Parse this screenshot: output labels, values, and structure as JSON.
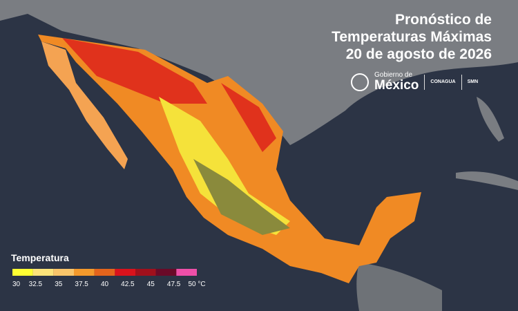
{
  "header": {
    "title": [
      "Pronóstico de",
      "Temperaturas Máximas",
      "20 de agosto de 2026"
    ],
    "logos": [
      "Gobierno de",
      "México",
      "CONAGUA",
      "SMN"
    ]
  },
  "legend": {
    "title": "Temperatura",
    "ticks": [
      30,
      32.5,
      35,
      37.5,
      40,
      42.5,
      45,
      47.5,
      {
        "value": 50,
        "label": "50 °C"
      }
    ],
    "colors": [
      "#ffff33",
      "#fde37a",
      "#f9c56a",
      "#f49a2c",
      "#e4641c",
      "#d9121c",
      "#a0101c",
      "#6a0a28",
      "#ee4fa8"
    ]
  }
}
